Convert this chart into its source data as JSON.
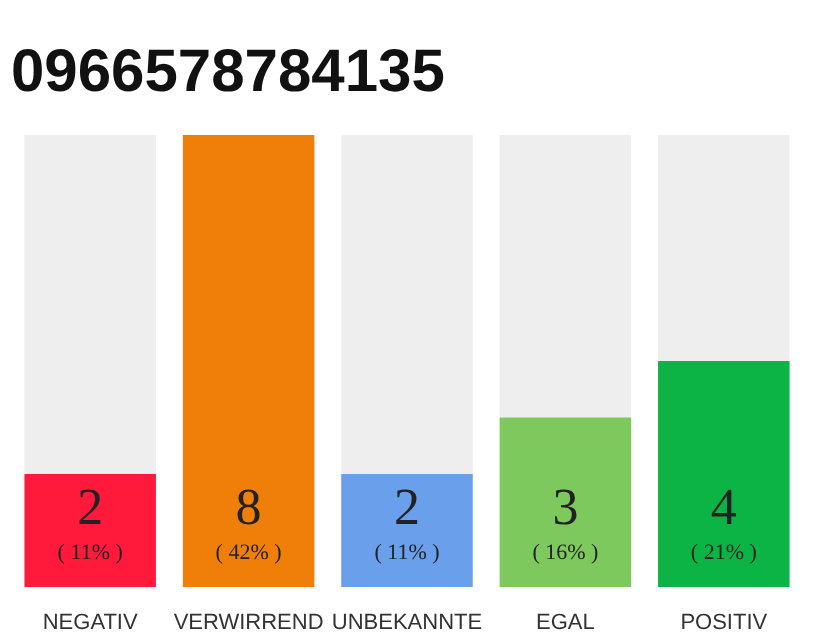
{
  "chart_data": {
    "type": "bar",
    "title": "0966578784135",
    "categories": [
      "NEGATIV",
      "VERWIRREND",
      "UNBEKANNTE",
      "EGAL",
      "POSITIV"
    ],
    "values": [
      2,
      8,
      2,
      3,
      4
    ],
    "colors": [
      "#ff1a3c",
      "#f07f0a",
      "#6aa0eb",
      "#7dc95e",
      "#0bb444"
    ],
    "value_labels": [
      "2\n( 11% )",
      "8\n( 42% )",
      "2\n( 11% )",
      "3\n( 16% )",
      "4\n( 21% )"
    ],
    "grid": false
  }
}
